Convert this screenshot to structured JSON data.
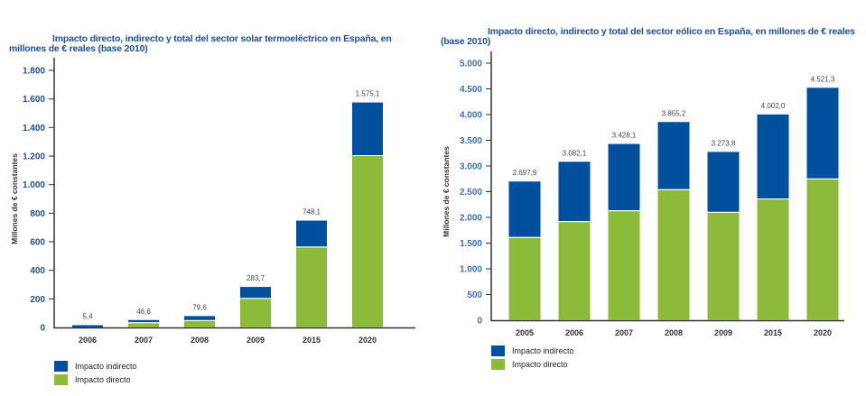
{
  "colors": {
    "indirect": "#00509e",
    "direct": "#8cbb3c",
    "title": "#1f4e9c"
  },
  "chart_data": [
    {
      "type": "bar",
      "stacked": true,
      "title": "Impacto directo, indirecto y total del sector solar termoeléctrico en España, en millones de € reales (base 2010)",
      "xlabel": "",
      "ylabel": "Millones de € constantes",
      "categories": [
        "2006",
        "2007",
        "2008",
        "2009",
        "2015",
        "2020"
      ],
      "series": [
        {
          "name": "Impacto directo",
          "values": [
            0,
            30,
            45,
            200,
            560,
            1200
          ]
        },
        {
          "name": "Impacto indirecto",
          "values": [
            5.4,
            16.6,
            34.6,
            83.7,
            188.1,
            375.1
          ]
        }
      ],
      "totals": [
        5.4,
        46.6,
        79.6,
        283.7,
        748.1,
        1575.1
      ],
      "total_labels": [
        "5,4",
        "46,6",
        "79,6",
        "283,7",
        "748,1",
        "1.575,1"
      ],
      "ylim": [
        0,
        1800
      ],
      "yticks": [
        0,
        200,
        400,
        600,
        800,
        1000,
        1200,
        1400,
        1600,
        1800
      ],
      "ytick_labels": [
        "0",
        "200",
        "400",
        "600",
        "800",
        "1.000",
        "1.200",
        "1.400",
        "1.600",
        "1.800"
      ],
      "grid": false,
      "legend": {
        "placement": "bottom-left",
        "entries": [
          "Impacto indirecto",
          "Impacto directo"
        ]
      }
    },
    {
      "type": "bar",
      "stacked": true,
      "title": "Impacto directo, indirecto y total del sector eólico en España, en millones de € reales (base 2010)",
      "xlabel": "",
      "ylabel": "Millones de € constantes",
      "categories": [
        "2005",
        "2006",
        "2007",
        "2008",
        "2009",
        "2015",
        "2020"
      ],
      "series": [
        {
          "name": "Impacto directo",
          "values": [
            1600,
            1910,
            2120,
            2530,
            2090,
            2350,
            2740
          ]
        },
        {
          "name": "Impacto indirecto",
          "values": [
            1097.9,
            1172.1,
            1308.1,
            1325.2,
            1183.8,
            1652.0,
            1781.3
          ]
        }
      ],
      "totals": [
        2697.9,
        3082.1,
        3428.1,
        3855.2,
        3273.8,
        4002.0,
        4521.3
      ],
      "total_labels": [
        "2.697,9",
        "3.082,1",
        "3.428,1",
        "3.855,2",
        "3.273,8",
        "4.002,0",
        "4.521,3"
      ],
      "ylim": [
        0,
        5000
      ],
      "yticks": [
        0,
        500,
        1000,
        1500,
        2000,
        2500,
        3000,
        3500,
        4000,
        4500,
        5000
      ],
      "ytick_labels": [
        "0",
        "500",
        "1.000",
        "1.500",
        "2.000",
        "2.500",
        "3.000",
        "3.500",
        "4.000",
        "4.500",
        "5.000"
      ],
      "grid": false,
      "legend": {
        "placement": "bottom-left",
        "entries": [
          "Impacto indirecto",
          "Impacto directo"
        ]
      }
    }
  ]
}
